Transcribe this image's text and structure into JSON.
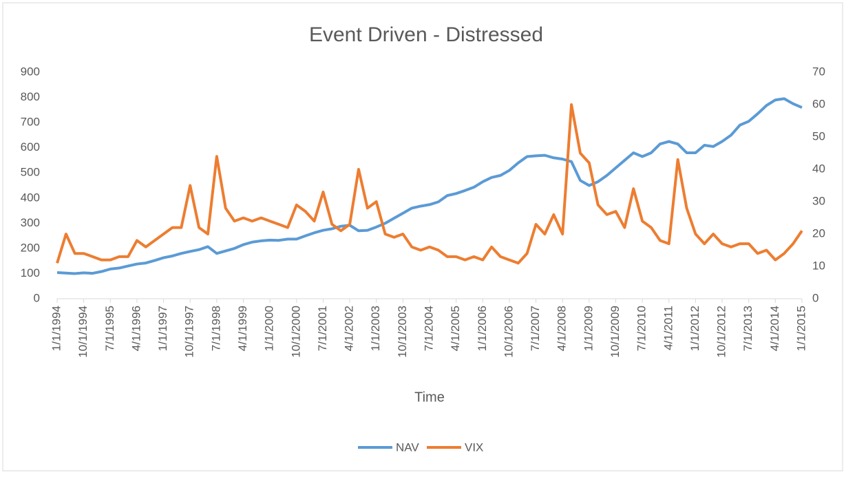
{
  "chart_data": {
    "type": "line",
    "title": "Event Driven - Distressed",
    "xlabel": "Time",
    "categories": [
      "1/1/1994",
      null,
      null,
      "10/1/1994",
      null,
      null,
      "7/1/1995",
      null,
      null,
      "4/1/1996",
      null,
      null,
      "1/1/1997",
      null,
      null,
      "10/1/1997",
      null,
      null,
      "7/1/1998",
      null,
      null,
      "4/1/1999",
      null,
      null,
      "1/1/2000",
      null,
      null,
      "10/1/2000",
      null,
      null,
      "7/1/2001",
      null,
      null,
      "4/1/2002",
      null,
      null,
      "1/1/2003",
      null,
      null,
      "10/1/2003",
      null,
      null,
      "7/1/2004",
      null,
      null,
      "4/1/2005",
      null,
      null,
      "1/1/2006",
      null,
      null,
      "10/1/2006",
      null,
      null,
      "7/1/2007",
      null,
      null,
      "4/1/2008",
      null,
      null,
      "1/1/2009",
      null,
      null,
      "10/1/2009",
      null,
      null,
      "7/1/2010",
      null,
      null,
      "4/1/2011",
      null,
      null,
      "1/1/2012",
      null,
      null,
      "10/1/2012",
      null,
      null,
      "7/1/2013",
      null,
      null,
      "4/1/2014",
      null,
      null,
      "1/1/2015"
    ],
    "series": [
      {
        "name": "NAV",
        "color": "#5b9bd5",
        "axis": "y",
        "values": [
          104,
          102,
          100,
          103,
          101,
          108,
          118,
          122,
          130,
          138,
          142,
          152,
          163,
          170,
          180,
          188,
          195,
          207,
          180,
          190,
          200,
          215,
          225,
          230,
          233,
          232,
          237,
          237,
          250,
          262,
          272,
          278,
          288,
          292,
          270,
          272,
          285,
          300,
          320,
          340,
          360,
          368,
          374,
          385,
          410,
          418,
          430,
          443,
          465,
          482,
          490,
          510,
          540,
          565,
          568,
          570,
          560,
          555,
          545,
          470,
          450,
          465,
          490,
          520,
          550,
          580,
          565,
          580,
          615,
          625,
          615,
          580,
          580,
          610,
          605,
          625,
          650,
          690,
          705,
          735,
          768,
          790,
          795,
          775,
          760
        ]
      },
      {
        "name": "VIX",
        "color": "#ed7d31",
        "axis": "y2",
        "values": [
          11,
          20,
          14,
          14,
          13,
          12,
          12,
          13,
          13,
          18,
          16,
          18,
          20,
          22,
          22,
          35,
          22,
          20,
          44,
          28,
          24,
          25,
          24,
          25,
          24,
          23,
          22,
          29,
          27,
          24,
          33,
          23,
          21,
          23,
          40,
          28,
          30,
          20,
          19,
          20,
          16,
          15,
          16,
          15,
          13,
          13,
          12,
          13,
          12,
          16,
          13,
          12,
          11,
          14,
          23,
          20,
          26,
          20,
          60,
          45,
          42,
          29,
          26,
          27,
          22,
          34,
          24,
          22,
          18,
          17,
          43,
          28,
          20,
          17,
          20,
          17,
          16,
          17,
          17,
          14,
          15,
          12,
          14,
          17,
          21
        ]
      }
    ],
    "ylim": [
      0,
      900
    ],
    "yticks": [
      0,
      100,
      200,
      300,
      400,
      500,
      600,
      700,
      800,
      900
    ],
    "y2lim": [
      0,
      70
    ],
    "y2ticks": [
      0,
      10,
      20,
      30,
      40,
      50,
      60,
      70
    ],
    "legend": "bottom"
  }
}
